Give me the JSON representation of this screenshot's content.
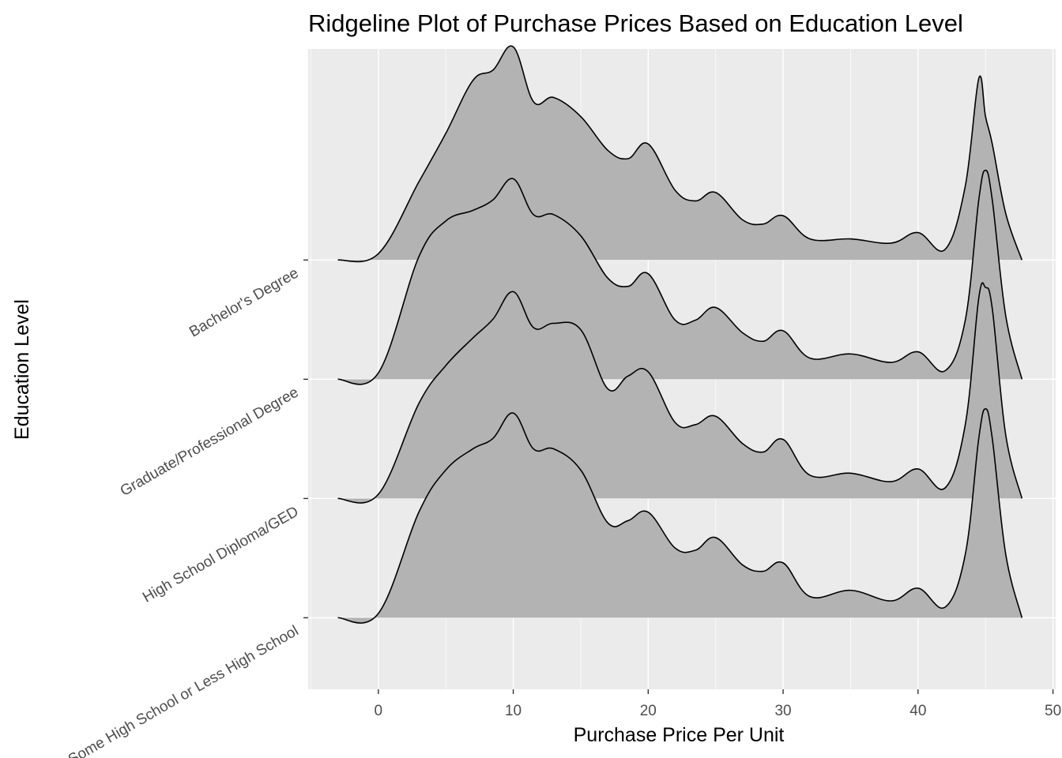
{
  "chart_data": {
    "type": "ridgeline",
    "title": "Ridgeline Plot of Purchase Prices Based on Education Level",
    "xlabel": "Purchase Price Per Unit",
    "ylabel": "Education Level",
    "xlim": [
      -5.2,
      50.2
    ],
    "x_ticks": [
      0,
      10,
      20,
      30,
      40,
      50
    ],
    "x_tick_labels": [
      "0",
      "10",
      "20",
      "30",
      "40",
      "50"
    ],
    "x_minor_ticks": [
      -5,
      5,
      15,
      25,
      35,
      45
    ],
    "grid": true,
    "fill_color": "#b3b3b3",
    "line_color": "#000000",
    "panel_background": "#ebebeb",
    "grid_color": "#ffffff",
    "ridge_scale": 1.77,
    "x": [
      -3,
      0,
      3,
      5,
      7,
      8.5,
      10,
      11.5,
      13,
      15,
      17,
      18.5,
      20,
      22,
      23.5,
      25,
      27,
      28.5,
      30,
      32,
      35,
      38,
      40,
      42,
      43.5,
      44.5,
      45,
      45.5,
      46.5,
      47.7
    ],
    "categories": [
      "Some High School or Less High School",
      "High School Diploma/GED",
      "Graduate/Professional Degree",
      "Bachelor's Degree"
    ],
    "series": [
      {
        "name": "Some High School or Less High School",
        "values": [
          0.0,
          0.02,
          0.5,
          0.7,
          0.8,
          0.85,
          0.97,
          0.8,
          0.8,
          0.7,
          0.45,
          0.46,
          0.5,
          0.33,
          0.32,
          0.38,
          0.25,
          0.22,
          0.26,
          0.1,
          0.13,
          0.08,
          0.14,
          0.05,
          0.3,
          0.85,
          0.99,
          0.85,
          0.3,
          0.0
        ]
      },
      {
        "name": "High School Diploma/GED",
        "values": [
          0.0,
          0.02,
          0.45,
          0.63,
          0.76,
          0.85,
          0.98,
          0.81,
          0.83,
          0.8,
          0.52,
          0.58,
          0.6,
          0.36,
          0.35,
          0.39,
          0.26,
          0.22,
          0.28,
          0.11,
          0.12,
          0.08,
          0.14,
          0.05,
          0.35,
          0.95,
          1.0,
          0.9,
          0.3,
          0.0
        ]
      },
      {
        "name": "Graduate/Professional Degree",
        "values": [
          0.0,
          0.03,
          0.58,
          0.75,
          0.8,
          0.85,
          0.95,
          0.78,
          0.78,
          0.68,
          0.48,
          0.44,
          0.5,
          0.28,
          0.28,
          0.34,
          0.22,
          0.18,
          0.23,
          0.1,
          0.12,
          0.08,
          0.13,
          0.04,
          0.28,
          0.85,
          0.99,
          0.85,
          0.3,
          0.0
        ]
      },
      {
        "name": "Bachelor's Degree",
        "values": [
          0.0,
          0.03,
          0.37,
          0.6,
          0.85,
          0.9,
          1.01,
          0.75,
          0.77,
          0.68,
          0.52,
          0.48,
          0.55,
          0.33,
          0.28,
          0.32,
          0.19,
          0.17,
          0.21,
          0.1,
          0.1,
          0.08,
          0.13,
          0.05,
          0.35,
          0.86,
          0.68,
          0.55,
          0.22,
          0.0
        ]
      }
    ]
  }
}
